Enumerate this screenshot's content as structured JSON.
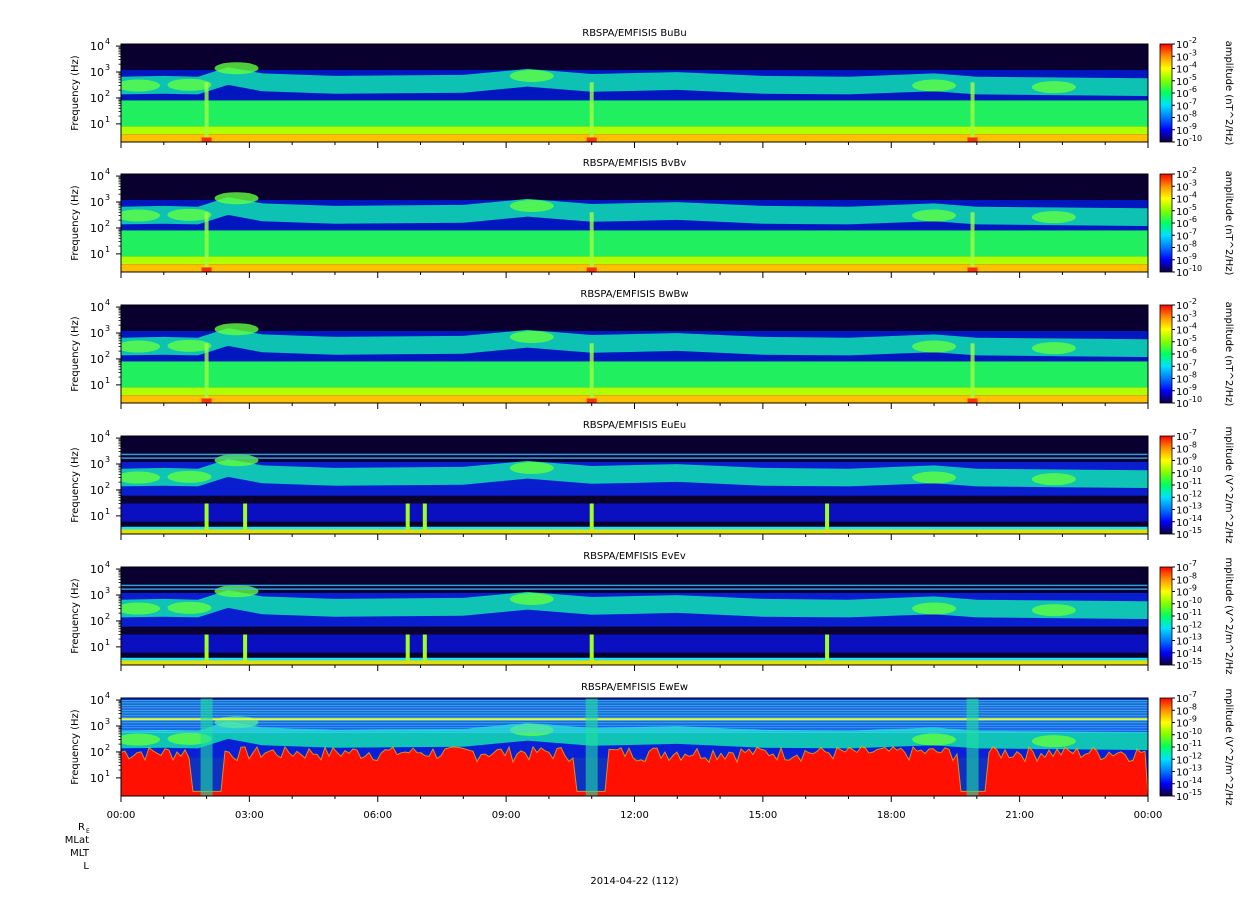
{
  "chart_data": {
    "type": "heatmap",
    "date_label": "2014-04-22 (112)",
    "x_range": [
      "00:00",
      "00:00"
    ],
    "x_tick_labels": [
      "00:00",
      "03:00",
      "06:00",
      "09:00",
      "12:00",
      "15:00",
      "18:00",
      "21:00",
      "00:00"
    ],
    "ephemeris_labels": {
      "re_main": "R",
      "re_sub": "E",
      "mlat": "MLat",
      "mlt": "MLT",
      "l": "L"
    },
    "panels": [
      {
        "title": "RBSPA/EMFISIS  BuBu",
        "ylabel": "Frequency (Hz)",
        "yscale": "log",
        "y_range_hz": [
          2,
          12000
        ],
        "y_ticks": [
          {
            "m": "10",
            "e": "1"
          },
          {
            "m": "10",
            "e": "2"
          },
          {
            "m": "10",
            "e": "3"
          },
          {
            "m": "10",
            "e": "4"
          }
        ],
        "zlabel": "amplitude (nT^2/Hz)",
        "z_range": [
          -10,
          -2
        ],
        "z_ticks": [
          {
            "m": "10",
            "e": "-2"
          },
          {
            "m": "10",
            "e": "-3"
          },
          {
            "m": "10",
            "e": "-4"
          },
          {
            "m": "10",
            "e": "-5"
          },
          {
            "m": "10",
            "e": "-6"
          },
          {
            "m": "10",
            "e": "-7"
          },
          {
            "m": "10",
            "e": "-8"
          },
          {
            "m": "10",
            "e": "-9"
          },
          {
            "m": "10",
            "e": "-10"
          }
        ]
      },
      {
        "title": "RBSPA/EMFISIS  BvBv",
        "ylabel": "Frequency (Hz)",
        "yscale": "log",
        "y_range_hz": [
          2,
          12000
        ],
        "y_ticks": [
          {
            "m": "10",
            "e": "1"
          },
          {
            "m": "10",
            "e": "2"
          },
          {
            "m": "10",
            "e": "3"
          },
          {
            "m": "10",
            "e": "4"
          }
        ],
        "zlabel": "amplitude (nT^2/Hz)",
        "z_range": [
          -10,
          -2
        ],
        "z_ticks": [
          {
            "m": "10",
            "e": "-2"
          },
          {
            "m": "10",
            "e": "-3"
          },
          {
            "m": "10",
            "e": "-4"
          },
          {
            "m": "10",
            "e": "-5"
          },
          {
            "m": "10",
            "e": "-6"
          },
          {
            "m": "10",
            "e": "-7"
          },
          {
            "m": "10",
            "e": "-8"
          },
          {
            "m": "10",
            "e": "-9"
          },
          {
            "m": "10",
            "e": "-10"
          }
        ]
      },
      {
        "title": "RBSPA/EMFISIS  BwBw",
        "ylabel": "Frequency (Hz)",
        "yscale": "log",
        "y_range_hz": [
          2,
          12000
        ],
        "y_ticks": [
          {
            "m": "10",
            "e": "1"
          },
          {
            "m": "10",
            "e": "2"
          },
          {
            "m": "10",
            "e": "3"
          },
          {
            "m": "10",
            "e": "4"
          }
        ],
        "zlabel": "amplitude (nT^2/Hz)",
        "z_range": [
          -10,
          -2
        ],
        "z_ticks": [
          {
            "m": "10",
            "e": "-2"
          },
          {
            "m": "10",
            "e": "-3"
          },
          {
            "m": "10",
            "e": "-4"
          },
          {
            "m": "10",
            "e": "-5"
          },
          {
            "m": "10",
            "e": "-6"
          },
          {
            "m": "10",
            "e": "-7"
          },
          {
            "m": "10",
            "e": "-8"
          },
          {
            "m": "10",
            "e": "-9"
          },
          {
            "m": "10",
            "e": "-10"
          }
        ]
      },
      {
        "title": "RBSPA/EMFISIS  EuEu",
        "ylabel": "Frequency (Hz)",
        "yscale": "log",
        "y_range_hz": [
          2,
          12000
        ],
        "y_ticks": [
          {
            "m": "10",
            "e": "1"
          },
          {
            "m": "10",
            "e": "2"
          },
          {
            "m": "10",
            "e": "3"
          },
          {
            "m": "10",
            "e": "4"
          }
        ],
        "zlabel": "mplitude (V^2/m^2/Hz",
        "z_range": [
          -15,
          -7
        ],
        "z_ticks": [
          {
            "m": "10",
            "e": "-7"
          },
          {
            "m": "10",
            "e": "-8"
          },
          {
            "m": "10",
            "e": "-9"
          },
          {
            "m": "10",
            "e": "-10"
          },
          {
            "m": "10",
            "e": "-11"
          },
          {
            "m": "10",
            "e": "-12"
          },
          {
            "m": "10",
            "e": "-13"
          },
          {
            "m": "10",
            "e": "-14"
          },
          {
            "m": "10",
            "e": "-15"
          }
        ]
      },
      {
        "title": "RBSPA/EMFISIS  EvEv",
        "ylabel": "Frequency (Hz)",
        "yscale": "log",
        "y_range_hz": [
          2,
          12000
        ],
        "y_ticks": [
          {
            "m": "10",
            "e": "1"
          },
          {
            "m": "10",
            "e": "2"
          },
          {
            "m": "10",
            "e": "3"
          },
          {
            "m": "10",
            "e": "4"
          }
        ],
        "zlabel": "mplitude (V^2/m^2/Hz",
        "z_range": [
          -15,
          -7
        ],
        "z_ticks": [
          {
            "m": "10",
            "e": "-7"
          },
          {
            "m": "10",
            "e": "-8"
          },
          {
            "m": "10",
            "e": "-9"
          },
          {
            "m": "10",
            "e": "-10"
          },
          {
            "m": "10",
            "e": "-11"
          },
          {
            "m": "10",
            "e": "-12"
          },
          {
            "m": "10",
            "e": "-13"
          },
          {
            "m": "10",
            "e": "-14"
          },
          {
            "m": "10",
            "e": "-15"
          }
        ]
      },
      {
        "title": "RBSPA/EMFISIS  EwEw",
        "ylabel": "Frequency (Hz)",
        "yscale": "log",
        "y_range_hz": [
          2,
          12000
        ],
        "y_ticks": [
          {
            "m": "10",
            "e": "1"
          },
          {
            "m": "10",
            "e": "2"
          },
          {
            "m": "10",
            "e": "3"
          },
          {
            "m": "10",
            "e": "4"
          }
        ],
        "zlabel": "mplitude (V^2/m^2/Hz",
        "z_range": [
          -15,
          -7
        ],
        "z_ticks": [
          {
            "m": "10",
            "e": "-7"
          },
          {
            "m": "10",
            "e": "-8"
          },
          {
            "m": "10",
            "e": "-9"
          },
          {
            "m": "10",
            "e": "-10"
          },
          {
            "m": "10",
            "e": "-11"
          },
          {
            "m": "10",
            "e": "-12"
          },
          {
            "m": "10",
            "e": "-13"
          },
          {
            "m": "10",
            "e": "-14"
          },
          {
            "m": "10",
            "e": "-15"
          }
        ]
      }
    ],
    "colormap": [
      "#10003a",
      "#0000ff",
      "#0078ff",
      "#00e0ff",
      "#00ff60",
      "#80ff00",
      "#ffff00",
      "#ff9000",
      "#ff0000"
    ]
  }
}
